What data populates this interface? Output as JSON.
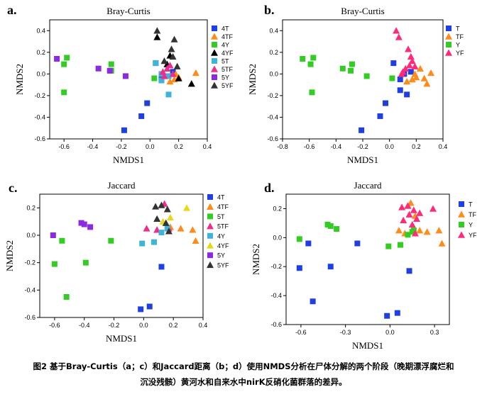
{
  "colors": {
    "T": "#1f3fe0",
    "TF": "#ff8c1a",
    "Y": "#33cc22",
    "YF": "#ff2a7a",
    "5T": "#3fb4d8",
    "5TF": "#ee2d8a",
    "5Y": "#8a2be2",
    "5YF": "#333333",
    "4Y_c": "#3fb4d8",
    "4YF_c": "#e8d81a"
  },
  "caption": {
    "line1": "图2 基于Bray-Curtis（a；c）和Jaccard距离（b；d）使用NMDS分析在尸体分解的两个阶段（晚期漂浮腐烂和",
    "line2": "沉没残骸）黄河水和自来水中nirK反硝化菌群落的差异。"
  },
  "chart_data": [
    {
      "panel": "a.",
      "type": "scatter",
      "title": "Bray-Curtis",
      "xlabel": "NMDS1",
      "ylabel": "NMDS2",
      "xlim": [
        -0.7,
        0.4
      ],
      "ylim": [
        -0.6,
        0.5
      ],
      "xticks": [
        "-0.6",
        "-0.4",
        "-0.2",
        "0.0",
        "0.2",
        "0.4"
      ],
      "yticks": [
        "-0.6",
        "-0.4",
        "-0.2",
        "0.0",
        "0.2",
        "0.4"
      ],
      "legend": [
        "4T",
        "4TF",
        "4Y",
        "4YF",
        "5T",
        "5TF",
        "5Y",
        "5YF"
      ],
      "series": [
        {
          "name": "4T",
          "shape": "square",
          "color": "T",
          "x": [
            -0.18,
            -0.06,
            -0.02,
            0.04,
            0.08,
            0.16
          ],
          "y": [
            -0.52,
            -0.39,
            -0.27,
            0.1,
            -0.05,
            0.02
          ]
        },
        {
          "name": "4TF",
          "shape": "triangle",
          "color": "TF",
          "x": [
            0.32,
            0.2,
            0.17,
            0.14,
            0.18
          ],
          "y": [
            0.01,
            -0.03,
            -0.05,
            -0.07,
            0.0
          ]
        },
        {
          "name": "4Y",
          "shape": "square",
          "color": "Y",
          "x": [
            -0.6,
            -0.58,
            -0.6,
            -0.27,
            -0.27,
            0.03
          ],
          "y": [
            0.09,
            0.15,
            -0.17,
            0.09,
            0.03,
            -0.04
          ]
        },
        {
          "name": "4YF",
          "shape": "triangle",
          "color": "4YF",
          "x": [
            0.05,
            0.29,
            0.12,
            0.2,
            0.14
          ],
          "y": [
            0.34,
            -0.09,
            0.09,
            -0.04,
            0.17
          ]
        },
        {
          "name": "5T",
          "shape": "square",
          "color": "5T",
          "x": [
            0.04,
            0.08,
            0.13,
            0.08,
            0.13
          ],
          "y": [
            0.1,
            -0.06,
            -0.19,
            0.0,
            -0.02
          ]
        },
        {
          "name": "5TF",
          "shape": "triangle",
          "color": "5TF",
          "x": [
            0.09,
            0.12,
            0.14,
            0.16,
            0.1
          ],
          "y": [
            0.02,
            0.05,
            0.08,
            0.0,
            -0.02
          ]
        },
        {
          "name": "5Y",
          "shape": "square",
          "color": "5Y",
          "x": [
            -0.65,
            -0.36,
            -0.28,
            -0.17
          ],
          "y": [
            0.14,
            0.05,
            0.03,
            -0.02
          ]
        },
        {
          "name": "5YF",
          "shape": "triangle",
          "color": "5YF",
          "x": [
            0.05,
            0.15,
            0.16,
            0.19,
            0.17,
            0.1
          ],
          "y": [
            0.4,
            0.23,
            0.16,
            0.07,
            0.32,
            0.12
          ]
        }
      ]
    },
    {
      "panel": "b.",
      "type": "scatter",
      "title": "Bray-Curtis",
      "xlabel": "NMDS1",
      "ylabel": "NMDS2",
      "xlim": [
        -0.8,
        0.4
      ],
      "ylim": [
        -0.6,
        0.5
      ],
      "xticks": [
        "-0.8",
        "-0.6",
        "-0.4",
        "-0.2",
        "0.0",
        "0.2",
        "0.4"
      ],
      "yticks": [
        "-0.6",
        "-0.4",
        "-0.2",
        "0.0",
        "0.2",
        "0.4"
      ],
      "legend": [
        "T",
        "TF",
        "Y",
        "YF"
      ],
      "series": [
        {
          "name": "T",
          "shape": "square",
          "color": "T",
          "x": [
            -0.21,
            -0.07,
            -0.03,
            0.03,
            0.08,
            0.13,
            0.08,
            0.16,
            0.11
          ],
          "y": [
            -0.52,
            -0.39,
            -0.27,
            0.1,
            -0.05,
            -0.19,
            -0.15,
            0.02,
            0.0
          ]
        },
        {
          "name": "TF",
          "shape": "triangle",
          "color": "TF",
          "x": [
            0.31,
            0.2,
            0.17,
            0.13,
            0.23,
            0.26,
            0.19,
            0.28
          ],
          "y": [
            0.01,
            -0.03,
            -0.05,
            -0.07,
            0.05,
            -0.04,
            0.0,
            -0.09
          ]
        },
        {
          "name": "Y",
          "shape": "square",
          "color": "Y",
          "x": [
            -0.65,
            -0.59,
            -0.57,
            -0.58,
            -0.35,
            -0.28,
            -0.29,
            -0.17,
            0.02
          ],
          "y": [
            0.14,
            0.09,
            0.15,
            -0.17,
            0.05,
            0.09,
            0.03,
            -0.02,
            -0.04
          ]
        },
        {
          "name": "YF",
          "shape": "triangle",
          "color": "YF",
          "x": [
            0.05,
            0.07,
            0.14,
            0.16,
            0.19,
            0.1,
            0.12,
            0.15,
            0.17,
            0.09
          ],
          "y": [
            0.4,
            0.34,
            0.23,
            0.16,
            0.07,
            0.02,
            0.05,
            0.08,
            0.12,
            0.0
          ]
        }
      ]
    },
    {
      "panel": "c.",
      "type": "scatter",
      "title": "Jaccard",
      "xlabel": "NMDS1",
      "ylabel": "NMDS2",
      "xlim": [
        -0.7,
        0.4
      ],
      "ylim": [
        -0.6,
        0.3
      ],
      "xticks": [
        "-0.6",
        "-0.4",
        "-0.2",
        "0.0",
        "0.2",
        "0.4"
      ],
      "yticks": [
        "-0.6",
        "-0.4",
        "-0.2",
        "0.0",
        "0.2"
      ],
      "legend": [
        "4T",
        "4TF",
        "5T",
        "5TF",
        "4Y",
        "4YF",
        "5Y",
        "5YF"
      ],
      "series": [
        {
          "name": "4T",
          "shape": "square",
          "color": "T",
          "x": [
            -0.02,
            0.04,
            0.12
          ],
          "y": [
            -0.54,
            -0.52,
            -0.23
          ]
        },
        {
          "name": "4TF",
          "shape": "triangle",
          "color": "TF",
          "x": [
            0.25,
            0.33,
            0.35,
            0.18
          ],
          "y": [
            0.05,
            0.04,
            -0.04,
            0.06
          ]
        },
        {
          "name": "5T",
          "shape": "square",
          "color": "Y",
          "x": [
            -0.6,
            -0.55,
            -0.52,
            -0.39,
            -0.22
          ],
          "y": [
            -0.21,
            -0.04,
            -0.45,
            -0.2,
            -0.04
          ]
        },
        {
          "name": "5TF",
          "shape": "triangle",
          "color": "5TF",
          "x": [
            0.02,
            0.14,
            0.09,
            0.17
          ],
          "y": [
            0.05,
            0.23,
            0.04,
            0.05
          ]
        },
        {
          "name": "4Y",
          "shape": "square",
          "color": "5T",
          "x": [
            -0.01,
            0.07,
            0.12,
            0.16
          ],
          "y": [
            -0.06,
            -0.05,
            0.02,
            0.05
          ]
        },
        {
          "name": "4YF",
          "shape": "triangle",
          "color": "4YF_c",
          "x": [
            0.29,
            0.18,
            0.13
          ],
          "y": [
            0.2,
            0.13,
            0.1
          ]
        },
        {
          "name": "5Y",
          "shape": "square",
          "color": "5Y",
          "x": [
            -0.61,
            -0.42,
            -0.4,
            -0.36
          ],
          "y": [
            0.0,
            0.09,
            0.08,
            0.06
          ]
        },
        {
          "name": "5YF",
          "shape": "triangle",
          "color": "5YF",
          "x": [
            0.08,
            0.12,
            0.16,
            0.15,
            0.09,
            0.17
          ],
          "y": [
            0.21,
            0.22,
            0.19,
            0.09,
            0.12,
            0.03
          ]
        }
      ]
    },
    {
      "panel": "d.",
      "type": "scatter",
      "title": "Jaccard",
      "xlabel": "NMDS1",
      "ylabel": "NMDS2",
      "xlim": [
        -0.7,
        0.4
      ],
      "ylim": [
        -0.6,
        0.3
      ],
      "xticks": [
        "-0.6",
        "-0.3",
        "0.0",
        "0.3"
      ],
      "yticks": [
        "-0.6",
        "-0.4",
        "-0.2",
        "0.0",
        "0.2"
      ],
      "legend": [
        "T",
        "TF",
        "Y",
        "YF"
      ],
      "series": [
        {
          "name": "T",
          "shape": "square",
          "color": "T",
          "x": [
            -0.61,
            -0.55,
            -0.52,
            -0.4,
            -0.22,
            -0.02,
            0.05,
            0.13
          ],
          "y": [
            -0.21,
            -0.04,
            -0.44,
            -0.2,
            -0.04,
            -0.54,
            -0.52,
            -0.23
          ]
        },
        {
          "name": "TF",
          "shape": "triangle",
          "color": "TF",
          "x": [
            0.06,
            0.1,
            0.12,
            0.14,
            0.2,
            0.25,
            0.33,
            0.35,
            0.17
          ],
          "y": [
            0.05,
            0.03,
            0.22,
            0.24,
            0.05,
            0.04,
            0.05,
            -0.04,
            0.15
          ]
        },
        {
          "name": "Y",
          "shape": "square",
          "color": "Y",
          "x": [
            -0.61,
            -0.42,
            -0.4,
            -0.36,
            -0.01,
            0.07,
            0.12,
            0.15,
            0.16
          ],
          "y": [
            -0.01,
            0.09,
            0.08,
            0.06,
            -0.06,
            -0.05,
            0.02,
            0.04,
            0.05
          ]
        },
        {
          "name": "YF",
          "shape": "triangle",
          "color": "YF",
          "x": [
            0.08,
            0.12,
            0.16,
            0.15,
            0.09,
            0.17,
            0.29,
            0.18,
            0.13,
            0.2
          ],
          "y": [
            0.21,
            0.22,
            0.19,
            0.09,
            0.12,
            0.03,
            0.2,
            0.13,
            0.16,
            0.17
          ]
        }
      ]
    }
  ]
}
